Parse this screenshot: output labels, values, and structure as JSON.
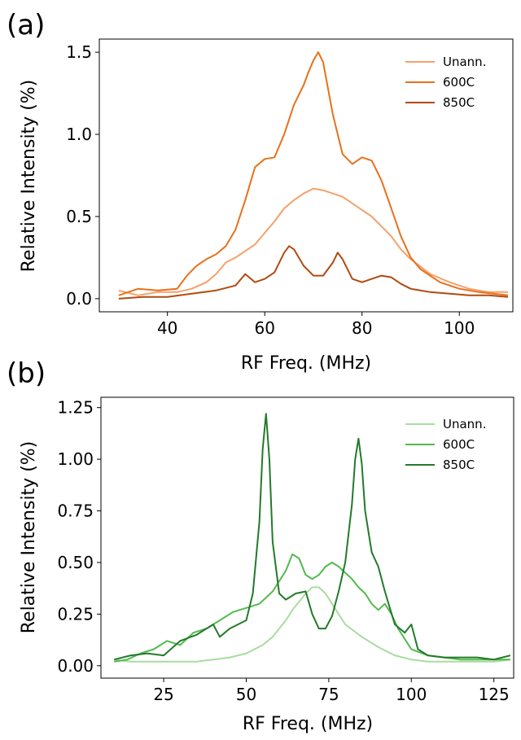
{
  "chart_data": [
    {
      "type": "line",
      "panel_label": "(a)",
      "title": "",
      "xlabel": "RF Freq. (MHz)",
      "ylabel": "Relative Intensity (%)",
      "xlim": [
        26,
        111
      ],
      "ylim": [
        -0.08,
        1.58
      ],
      "xticks": [
        40,
        60,
        80,
        100
      ],
      "yticks": [
        0.0,
        0.5,
        1.0,
        1.5
      ],
      "ytick_labels": [
        "0.0",
        "0.5",
        "1.0",
        "1.5"
      ],
      "legend_position": "top-right",
      "grid": false,
      "series": [
        {
          "name": "Unann.",
          "color": "#f5a16a",
          "x": [
            30,
            34,
            38,
            42,
            45,
            48,
            50,
            52,
            54,
            56,
            58,
            60,
            62,
            64,
            66,
            68,
            70,
            72,
            74,
            76,
            78,
            80,
            82,
            84,
            86,
            88,
            90,
            94,
            98,
            102,
            106,
            110
          ],
          "y": [
            0.05,
            0.02,
            0.04,
            0.04,
            0.06,
            0.1,
            0.15,
            0.22,
            0.25,
            0.29,
            0.33,
            0.4,
            0.47,
            0.55,
            0.6,
            0.64,
            0.67,
            0.66,
            0.64,
            0.62,
            0.58,
            0.54,
            0.5,
            0.44,
            0.38,
            0.3,
            0.24,
            0.15,
            0.1,
            0.06,
            0.04,
            0.04
          ]
        },
        {
          "name": "600C",
          "color": "#e8711c",
          "x": [
            30,
            34,
            38,
            42,
            44,
            46,
            48,
            50,
            52,
            54,
            56,
            58,
            60,
            62,
            64,
            66,
            68,
            69,
            70,
            71,
            72,
            74,
            76,
            78,
            80,
            82,
            84,
            86,
            88,
            90,
            92,
            96,
            100,
            104,
            110
          ],
          "y": [
            0.02,
            0.06,
            0.05,
            0.06,
            0.14,
            0.2,
            0.24,
            0.27,
            0.32,
            0.42,
            0.6,
            0.8,
            0.85,
            0.86,
            1.0,
            1.18,
            1.3,
            1.38,
            1.45,
            1.5,
            1.44,
            1.12,
            0.88,
            0.82,
            0.86,
            0.84,
            0.72,
            0.55,
            0.38,
            0.25,
            0.18,
            0.1,
            0.06,
            0.04,
            0.02
          ]
        },
        {
          "name": "850C",
          "color": "#b24a10",
          "x": [
            30,
            35,
            40,
            45,
            50,
            54,
            56,
            58,
            60,
            62,
            64,
            65,
            66,
            68,
            70,
            72,
            74,
            75,
            76,
            78,
            80,
            82,
            84,
            86,
            88,
            90,
            94,
            98,
            102,
            106,
            110
          ],
          "y": [
            0.0,
            0.01,
            0.01,
            0.03,
            0.05,
            0.08,
            0.15,
            0.1,
            0.12,
            0.16,
            0.28,
            0.32,
            0.3,
            0.2,
            0.14,
            0.14,
            0.22,
            0.28,
            0.24,
            0.12,
            0.1,
            0.12,
            0.14,
            0.13,
            0.09,
            0.06,
            0.04,
            0.03,
            0.02,
            0.02,
            0.01
          ]
        }
      ]
    },
    {
      "type": "line",
      "panel_label": "(b)",
      "title": "",
      "xlabel": "RF Freq. (MHz)",
      "ylabel": "Relative Intensity (%)",
      "xlim": [
        6,
        131
      ],
      "ylim": [
        -0.06,
        1.3
      ],
      "xticks": [
        25,
        50,
        75,
        100,
        125
      ],
      "yticks": [
        0.0,
        0.25,
        0.5,
        0.75,
        1.0,
        1.25
      ],
      "ytick_labels": [
        "0.00",
        "0.25",
        "0.50",
        "0.75",
        "1.00",
        "1.25"
      ],
      "legend_position": "top-right",
      "grid": false,
      "series": [
        {
          "name": "Unann.",
          "color": "#a8dca0",
          "x": [
            10,
            15,
            20,
            25,
            30,
            35,
            40,
            45,
            50,
            55,
            58,
            60,
            62,
            64,
            66,
            68,
            70,
            72,
            74,
            76,
            78,
            80,
            85,
            90,
            95,
            100,
            105,
            110,
            115,
            120,
            125,
            130
          ],
          "y": [
            0.03,
            0.02,
            0.02,
            0.02,
            0.02,
            0.02,
            0.03,
            0.04,
            0.06,
            0.1,
            0.14,
            0.18,
            0.22,
            0.27,
            0.31,
            0.35,
            0.38,
            0.38,
            0.35,
            0.3,
            0.25,
            0.2,
            0.14,
            0.09,
            0.05,
            0.03,
            0.02,
            0.02,
            0.02,
            0.02,
            0.02,
            0.03
          ]
        },
        {
          "name": "600C",
          "color": "#52ba4e",
          "x": [
            10,
            14,
            18,
            22,
            26,
            30,
            34,
            38,
            42,
            46,
            50,
            54,
            58,
            62,
            64,
            66,
            68,
            70,
            72,
            74,
            76,
            78,
            80,
            82,
            84,
            86,
            88,
            90,
            92,
            94,
            96,
            100,
            105,
            110,
            115,
            120,
            125,
            130
          ],
          "y": [
            0.02,
            0.03,
            0.06,
            0.08,
            0.12,
            0.1,
            0.16,
            0.18,
            0.22,
            0.26,
            0.28,
            0.3,
            0.36,
            0.46,
            0.54,
            0.52,
            0.44,
            0.42,
            0.44,
            0.48,
            0.5,
            0.48,
            0.45,
            0.42,
            0.38,
            0.35,
            0.3,
            0.27,
            0.3,
            0.25,
            0.18,
            0.08,
            0.05,
            0.04,
            0.03,
            0.03,
            0.03,
            0.03
          ]
        },
        {
          "name": "850C",
          "color": "#237a2a",
          "x": [
            10,
            15,
            20,
            25,
            30,
            35,
            40,
            42,
            45,
            50,
            52,
            54,
            55,
            56,
            57,
            58,
            60,
            62,
            65,
            68,
            70,
            72,
            74,
            76,
            78,
            80,
            82,
            83,
            84,
            85,
            86,
            88,
            90,
            92,
            95,
            98,
            100,
            102,
            105,
            110,
            115,
            120,
            125,
            130
          ],
          "y": [
            0.03,
            0.05,
            0.06,
            0.05,
            0.12,
            0.15,
            0.2,
            0.14,
            0.18,
            0.22,
            0.35,
            0.7,
            1.05,
            1.22,
            1.0,
            0.6,
            0.35,
            0.32,
            0.35,
            0.36,
            0.25,
            0.18,
            0.18,
            0.24,
            0.36,
            0.5,
            0.78,
            1.0,
            1.1,
            0.98,
            0.75,
            0.55,
            0.48,
            0.36,
            0.2,
            0.16,
            0.2,
            0.08,
            0.05,
            0.04,
            0.04,
            0.04,
            0.03,
            0.05
          ]
        }
      ]
    }
  ]
}
